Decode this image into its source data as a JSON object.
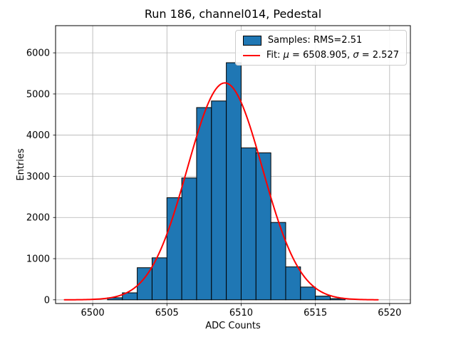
{
  "figure": {
    "title": "Run 186, channel014, Pedestal",
    "xlabel": "ADC Counts",
    "ylabel": "Entries"
  },
  "legend": {
    "samples_label": "Samples: RMS=2.51",
    "fit_parts": [
      "Fit: ",
      "μ",
      " = 6508.905, ",
      "σ",
      " = 2.527"
    ]
  },
  "chart_data": {
    "type": "bar",
    "subtype": "histogram",
    "title": "Run 186, channel014, Pedestal",
    "xlabel": "ADC Counts",
    "ylabel": "Entries",
    "bins": {
      "start": 6501,
      "width": 1
    },
    "counts": [
      50,
      170,
      780,
      1020,
      2480,
      2960,
      4670,
      4830,
      5760,
      3690,
      3570,
      1880,
      800,
      310,
      90,
      30
    ],
    "rms": 2.51,
    "fit": {
      "type": "gaussian",
      "mu": 6508.905,
      "sigma": 2.527,
      "amplitude": 5270,
      "x_start": 6498.1,
      "x_end": 6519.3,
      "color": "#ff0000"
    },
    "xlim": [
      6497.5,
      6521.4
    ],
    "ylim": [
      -90,
      6660
    ],
    "x_ticks": [
      6500,
      6505,
      6510,
      6515,
      6520
    ],
    "y_ticks": [
      0,
      1000,
      2000,
      3000,
      4000,
      5000,
      6000
    ],
    "grid": true,
    "grid_color": "#b0b0b0",
    "bar_color": "#1f77b4",
    "bar_edge_color": "#000000",
    "legend_position": "upper right"
  }
}
